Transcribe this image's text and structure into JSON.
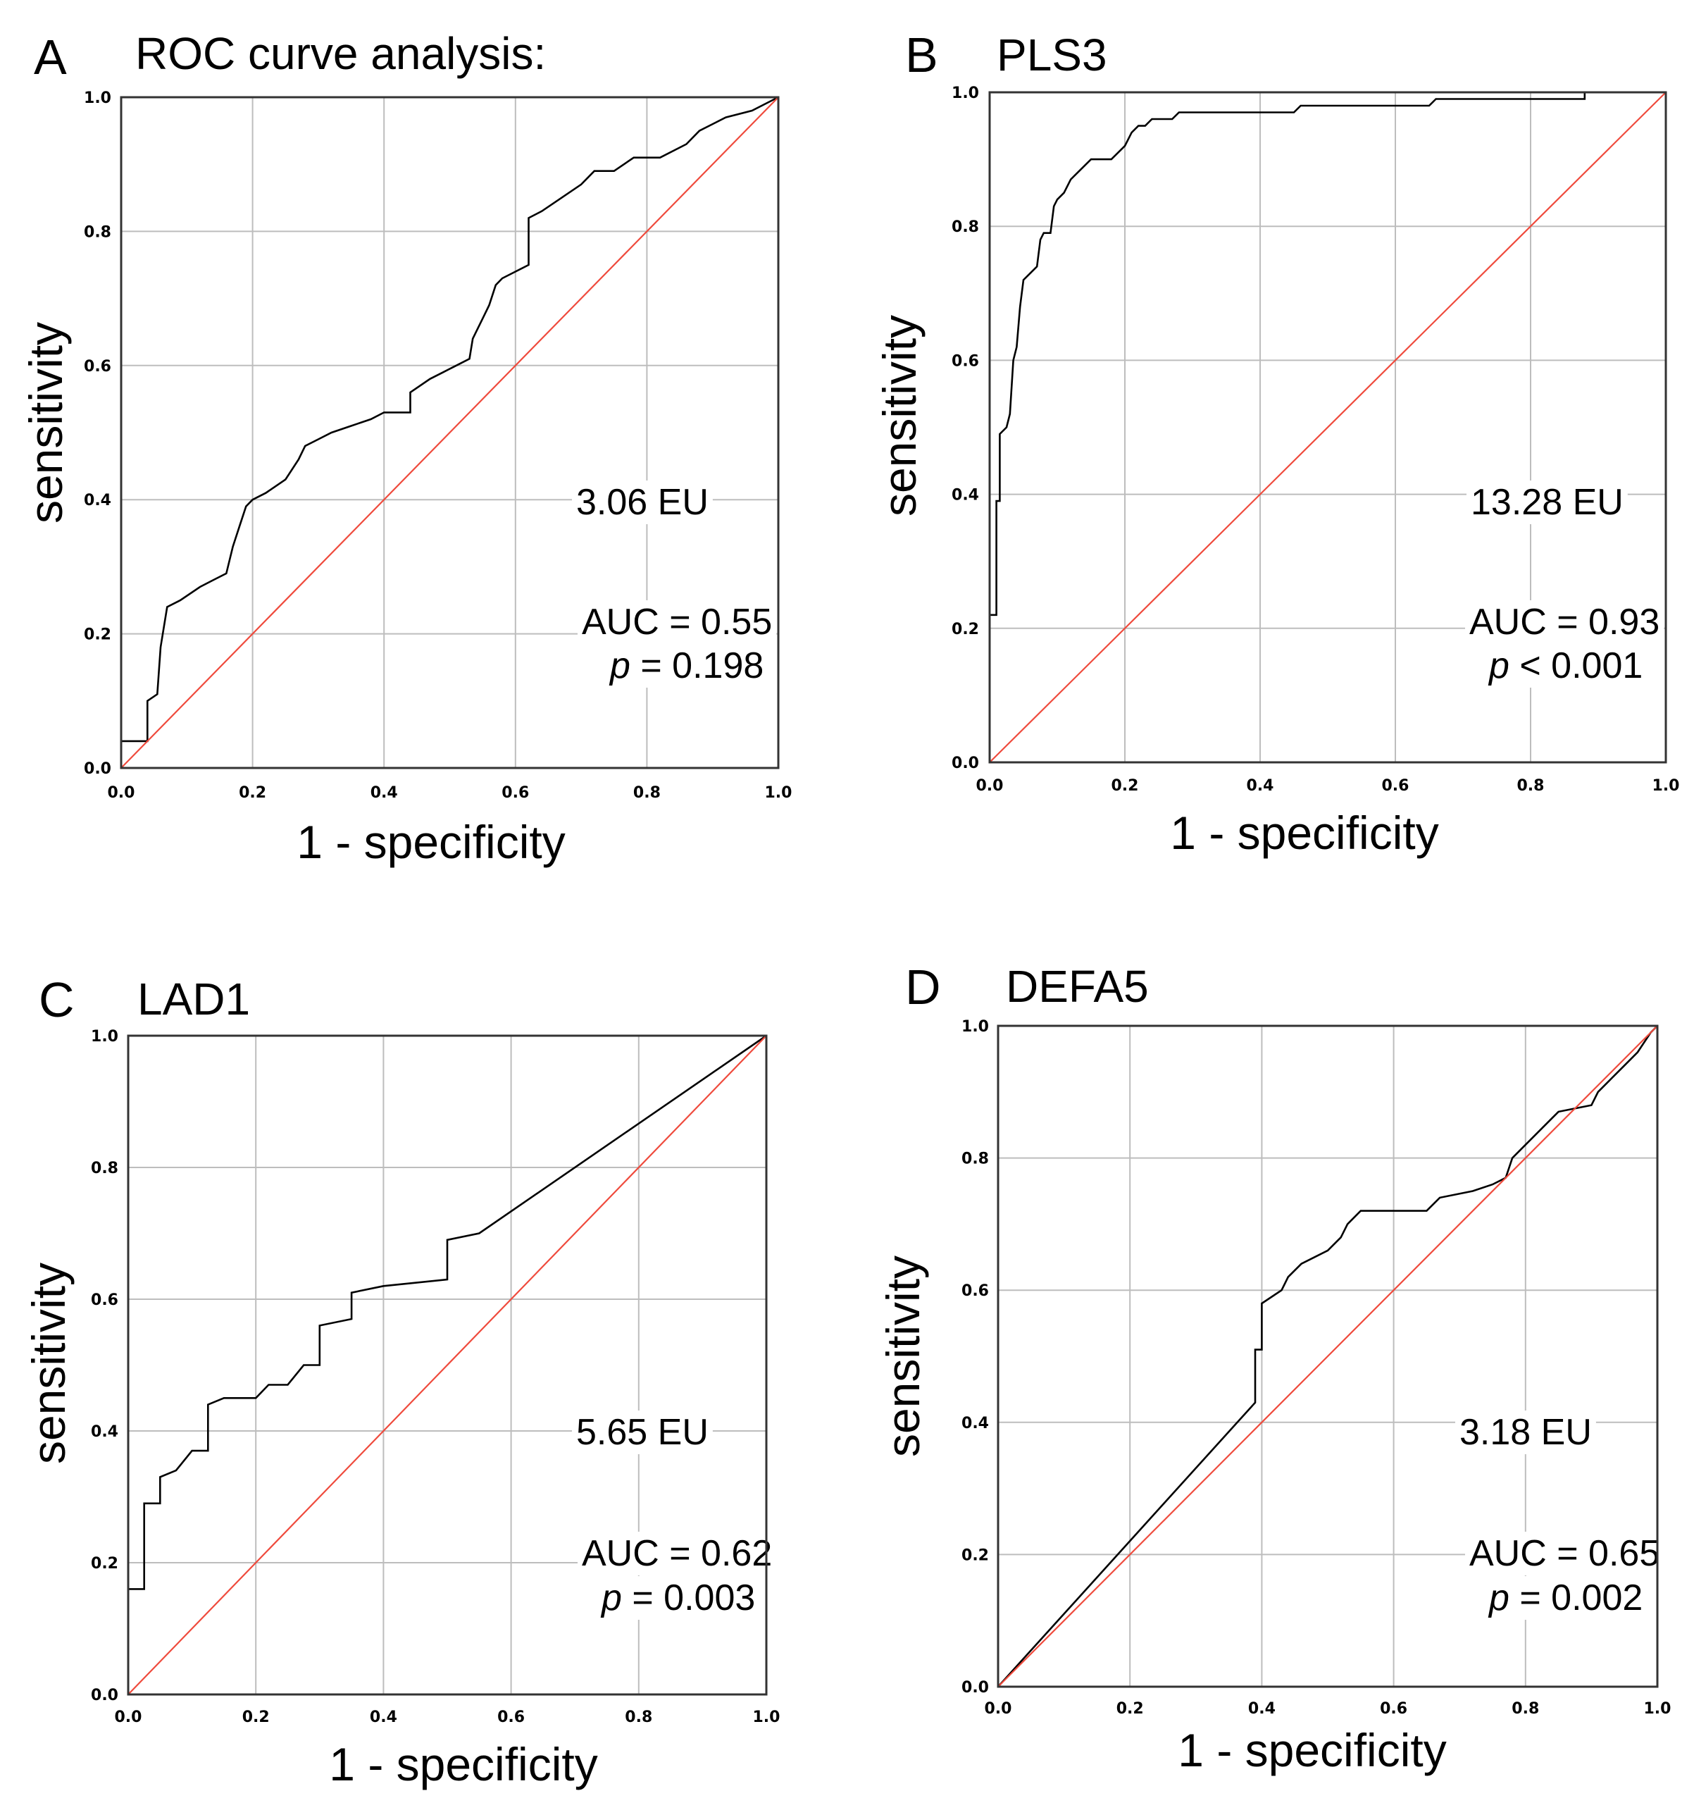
{
  "chart_data": [
    {
      "type": "line",
      "panel": "A",
      "title": "ROC curve analysis:",
      "xlabel": "1 - specificity",
      "ylabel": "sensitivity",
      "xlim": [
        0,
        1
      ],
      "ylim": [
        0,
        1
      ],
      "xticks": [
        "0.0",
        "0.2",
        "0.4",
        "0.6",
        "0.8",
        "1.0"
      ],
      "yticks": [
        "0.0",
        "0.2",
        "0.4",
        "0.6",
        "0.8",
        "1.0"
      ],
      "grid": true,
      "cutoff_label": "3.06 EU",
      "auc_label": "AUC = 0.55",
      "p_label": "p",
      "p_value": "= 0.198",
      "series": [
        {
          "name": "ROC",
          "points": [
            [
              0,
              0
            ],
            [
              0,
              0.04
            ],
            [
              0.04,
              0.04
            ],
            [
              0.04,
              0.1
            ],
            [
              0.055,
              0.11
            ],
            [
              0.06,
              0.18
            ],
            [
              0.07,
              0.24
            ],
            [
              0.09,
              0.25
            ],
            [
              0.12,
              0.27
            ],
            [
              0.14,
              0.28
            ],
            [
              0.16,
              0.29
            ],
            [
              0.17,
              0.33
            ],
            [
              0.18,
              0.36
            ],
            [
              0.19,
              0.39
            ],
            [
              0.2,
              0.4
            ],
            [
              0.22,
              0.41
            ],
            [
              0.25,
              0.43
            ],
            [
              0.27,
              0.46
            ],
            [
              0.28,
              0.48
            ],
            [
              0.3,
              0.49
            ],
            [
              0.32,
              0.5
            ],
            [
              0.35,
              0.51
            ],
            [
              0.38,
              0.52
            ],
            [
              0.4,
              0.53
            ],
            [
              0.44,
              0.53
            ],
            [
              0.44,
              0.56
            ],
            [
              0.47,
              0.58
            ],
            [
              0.49,
              0.59
            ],
            [
              0.51,
              0.6
            ],
            [
              0.53,
              0.61
            ],
            [
              0.535,
              0.64
            ],
            [
              0.55,
              0.67
            ],
            [
              0.56,
              0.69
            ],
            [
              0.57,
              0.72
            ],
            [
              0.58,
              0.73
            ],
            [
              0.6,
              0.74
            ],
            [
              0.62,
              0.75
            ],
            [
              0.62,
              0.82
            ],
            [
              0.64,
              0.83
            ],
            [
              0.67,
              0.85
            ],
            [
              0.7,
              0.87
            ],
            [
              0.72,
              0.89
            ],
            [
              0.75,
              0.89
            ],
            [
              0.78,
              0.91
            ],
            [
              0.82,
              0.91
            ],
            [
              0.86,
              0.93
            ],
            [
              0.88,
              0.95
            ],
            [
              0.9,
              0.96
            ],
            [
              0.92,
              0.97
            ],
            [
              0.96,
              0.98
            ],
            [
              0.98,
              0.99
            ],
            [
              1,
              1
            ]
          ]
        },
        {
          "name": "reference",
          "points": [
            [
              0,
              0
            ],
            [
              1,
              1
            ]
          ]
        }
      ]
    },
    {
      "type": "line",
      "panel": "B",
      "title": "PLS3",
      "xlabel": "1 - specificity",
      "ylabel": "sensitivity",
      "xlim": [
        0,
        1
      ],
      "ylim": [
        0,
        1
      ],
      "xticks": [
        "0.0",
        "0.2",
        "0.4",
        "0.6",
        "0.8",
        "1.0"
      ],
      "yticks": [
        "0.0",
        "0.2",
        "0.4",
        "0.6",
        "0.8",
        "1.0"
      ],
      "grid": true,
      "cutoff_label": "13.28 EU",
      "auc_label": "AUC = 0.93",
      "p_label": "p",
      "p_value": "< 0.001",
      "series": [
        {
          "name": "ROC",
          "points": [
            [
              0,
              0
            ],
            [
              0,
              0.22
            ],
            [
              0.01,
              0.22
            ],
            [
              0.01,
              0.39
            ],
            [
              0.015,
              0.39
            ],
            [
              0.015,
              0.49
            ],
            [
              0.025,
              0.5
            ],
            [
              0.03,
              0.52
            ],
            [
              0.035,
              0.6
            ],
            [
              0.04,
              0.62
            ],
            [
              0.045,
              0.68
            ],
            [
              0.05,
              0.72
            ],
            [
              0.06,
              0.73
            ],
            [
              0.07,
              0.74
            ],
            [
              0.075,
              0.78
            ],
            [
              0.08,
              0.79
            ],
            [
              0.09,
              0.79
            ],
            [
              0.095,
              0.83
            ],
            [
              0.1,
              0.84
            ],
            [
              0.11,
              0.85
            ],
            [
              0.12,
              0.87
            ],
            [
              0.13,
              0.88
            ],
            [
              0.14,
              0.89
            ],
            [
              0.15,
              0.9
            ],
            [
              0.18,
              0.9
            ],
            [
              0.19,
              0.91
            ],
            [
              0.2,
              0.92
            ],
            [
              0.21,
              0.94
            ],
            [
              0.22,
              0.95
            ],
            [
              0.23,
              0.95
            ],
            [
              0.24,
              0.96
            ],
            [
              0.27,
              0.96
            ],
            [
              0.28,
              0.97
            ],
            [
              0.32,
              0.97
            ],
            [
              0.45,
              0.97
            ],
            [
              0.46,
              0.98
            ],
            [
              0.6,
              0.98
            ],
            [
              0.65,
              0.98
            ],
            [
              0.66,
              0.99
            ],
            [
              0.88,
              0.99
            ],
            [
              0.88,
              1
            ],
            [
              1,
              1
            ]
          ]
        },
        {
          "name": "reference",
          "points": [
            [
              0,
              0
            ],
            [
              1,
              1
            ]
          ]
        }
      ]
    },
    {
      "type": "line",
      "panel": "C",
      "title": "LAD1",
      "xlabel": "1 - specificity",
      "ylabel": "sensitivity",
      "xlim": [
        0,
        1
      ],
      "ylim": [
        0,
        1
      ],
      "xticks": [
        "0.0",
        "0.2",
        "0.4",
        "0.6",
        "0.8",
        "1.0"
      ],
      "yticks": [
        "0.0",
        "0.2",
        "0.4",
        "0.6",
        "0.8",
        "1.0"
      ],
      "grid": true,
      "cutoff_label": "5.65 EU",
      "auc_label": "AUC = 0.62",
      "p_label": "p",
      "p_value": "= 0.003",
      "series": [
        {
          "name": "ROC",
          "points": [
            [
              0,
              0
            ],
            [
              0,
              0.16
            ],
            [
              0.025,
              0.16
            ],
            [
              0.025,
              0.29
            ],
            [
              0.05,
              0.29
            ],
            [
              0.05,
              0.33
            ],
            [
              0.075,
              0.34
            ],
            [
              0.1,
              0.37
            ],
            [
              0.125,
              0.37
            ],
            [
              0.125,
              0.44
            ],
            [
              0.15,
              0.45
            ],
            [
              0.2,
              0.45
            ],
            [
              0.22,
              0.47
            ],
            [
              0.25,
              0.47
            ],
            [
              0.275,
              0.5
            ],
            [
              0.3,
              0.5
            ],
            [
              0.3,
              0.56
            ],
            [
              0.35,
              0.57
            ],
            [
              0.35,
              0.61
            ],
            [
              0.4,
              0.62
            ],
            [
              0.5,
              0.63
            ],
            [
              0.5,
              0.69
            ],
            [
              0.55,
              0.7
            ],
            [
              1,
              1
            ]
          ]
        },
        {
          "name": "reference",
          "points": [
            [
              0,
              0
            ],
            [
              1,
              1
            ]
          ]
        }
      ]
    },
    {
      "type": "line",
      "panel": "D",
      "title": "DEFA5",
      "xlabel": "1 - specificity",
      "ylabel": "sensitivity",
      "xlim": [
        0,
        1
      ],
      "ylim": [
        0,
        1
      ],
      "xticks": [
        "0.0",
        "0.2",
        "0.4",
        "0.6",
        "0.8",
        "1.0"
      ],
      "yticks": [
        "0.0",
        "0.2",
        "0.4",
        "0.6",
        "0.8",
        "1.0"
      ],
      "grid": true,
      "cutoff_label": "3.18 EU",
      "auc_label": "AUC = 0.65",
      "p_label": "p",
      "p_value": "= 0.002",
      "series": [
        {
          "name": "ROC",
          "points": [
            [
              0,
              0
            ],
            [
              0.39,
              0.43
            ],
            [
              0.39,
              0.51
            ],
            [
              0.4,
              0.51
            ],
            [
              0.4,
              0.58
            ],
            [
              0.43,
              0.6
            ],
            [
              0.44,
              0.62
            ],
            [
              0.46,
              0.64
            ],
            [
              0.48,
              0.65
            ],
            [
              0.5,
              0.66
            ],
            [
              0.52,
              0.68
            ],
            [
              0.53,
              0.7
            ],
            [
              0.55,
              0.72
            ],
            [
              0.65,
              0.72
            ],
            [
              0.67,
              0.74
            ],
            [
              0.72,
              0.75
            ],
            [
              0.75,
              0.76
            ],
            [
              0.77,
              0.77
            ],
            [
              0.78,
              0.8
            ],
            [
              0.8,
              0.82
            ],
            [
              0.82,
              0.84
            ],
            [
              0.84,
              0.86
            ],
            [
              0.85,
              0.87
            ],
            [
              0.9,
              0.88
            ],
            [
              0.91,
              0.9
            ],
            [
              0.93,
              0.92
            ],
            [
              0.95,
              0.94
            ],
            [
              0.97,
              0.96
            ],
            [
              0.99,
              0.99
            ],
            [
              1,
              1
            ]
          ]
        },
        {
          "name": "reference",
          "points": [
            [
              0,
              0
            ],
            [
              1,
              1
            ]
          ]
        }
      ]
    }
  ]
}
